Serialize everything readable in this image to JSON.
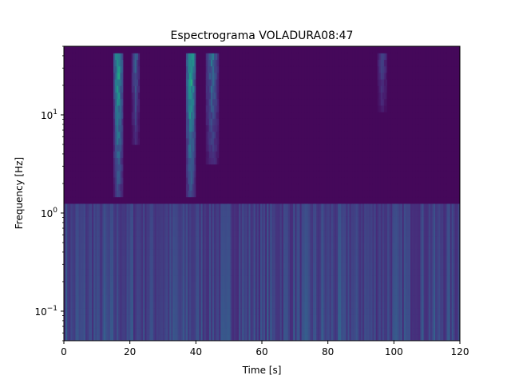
{
  "chart_data": {
    "type": "heatmap",
    "title": "Espectrograma VOLADURA08:47",
    "xlabel": "Time [s]",
    "ylabel": "Frequency [Hz]",
    "xlim": [
      0,
      120
    ],
    "ylim": [
      0.05,
      50
    ],
    "y_scale": "log",
    "colormap": "viridis",
    "x_ticks": [
      {
        "value": 0,
        "label": "0"
      },
      {
        "value": 20,
        "label": "20"
      },
      {
        "value": 40,
        "label": "40"
      },
      {
        "value": 60,
        "label": "60"
      },
      {
        "value": 80,
        "label": "80"
      },
      {
        "value": 100,
        "label": "100"
      },
      {
        "value": 120,
        "label": "120"
      }
    ],
    "y_ticks": [
      {
        "value": 0.1,
        "base": "10",
        "exp": "−1"
      },
      {
        "value": 1,
        "base": "10",
        "exp": "0"
      },
      {
        "value": 10,
        "base": "10",
        "exp": "1"
      }
    ],
    "events": [
      {
        "t_start": 15,
        "t_end": 18,
        "f_low": 1.5,
        "f_high": 45,
        "intensity": 0.9
      },
      {
        "t_start": 20.5,
        "t_end": 23,
        "f_low": 5,
        "f_high": 40,
        "intensity": 0.45
      },
      {
        "t_start": 37,
        "t_end": 40,
        "f_low": 1.5,
        "f_high": 45,
        "intensity": 1.0
      },
      {
        "t_start": 43,
        "t_end": 47,
        "f_low": 3,
        "f_high": 40,
        "intensity": 0.55
      },
      {
        "t_start": 95,
        "t_end": 98,
        "f_low": 10,
        "f_high": 40,
        "intensity": 0.3
      }
    ],
    "grid": false
  }
}
